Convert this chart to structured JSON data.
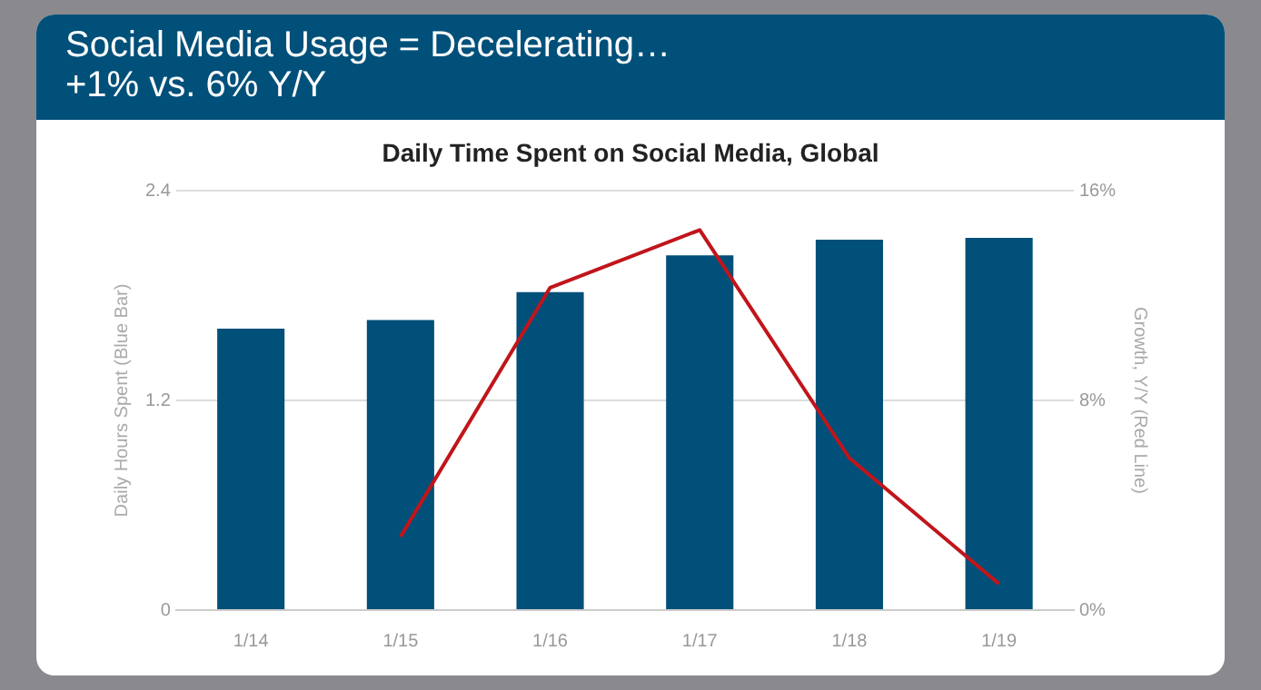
{
  "chart_data": {
    "type": "bar",
    "title": "Social Media Usage = Decelerating…\n+1% vs. 6% Y/Y",
    "subtitle": "Daily Time Spent on Social Media, Global",
    "categories": [
      "1/14",
      "1/15",
      "1/16",
      "1/17",
      "1/18",
      "1/19"
    ],
    "series": [
      {
        "color": "#00507a",
        "values": [
          1.61,
          1.66,
          1.82,
          2.03,
          2.12,
          2.13
        ]
      },
      {
        "type": "line",
        "axis": "y2",
        "color": "#c0151b",
        "values": [
          null,
          2.8,
          12.3,
          14.5,
          5.8,
          1
        ]
      }
    ],
    "ylabel": "Daily Hours Spent (Blue Bar)",
    "y2label": "Growth, Y/Y (Red Line)",
    "ylim": [
      0,
      2.4
    ],
    "yticks": [
      0,
      1.2,
      2.4
    ],
    "y2lim": [
      0,
      16
    ],
    "y2ticks": [
      {
        "value": 0,
        "label": "0%"
      },
      {
        "value": 8,
        "label": "8%"
      },
      {
        "value": 16,
        "label": "16%"
      }
    ],
    "grid": "y",
    "legend": false,
    "marker": "none"
  }
}
